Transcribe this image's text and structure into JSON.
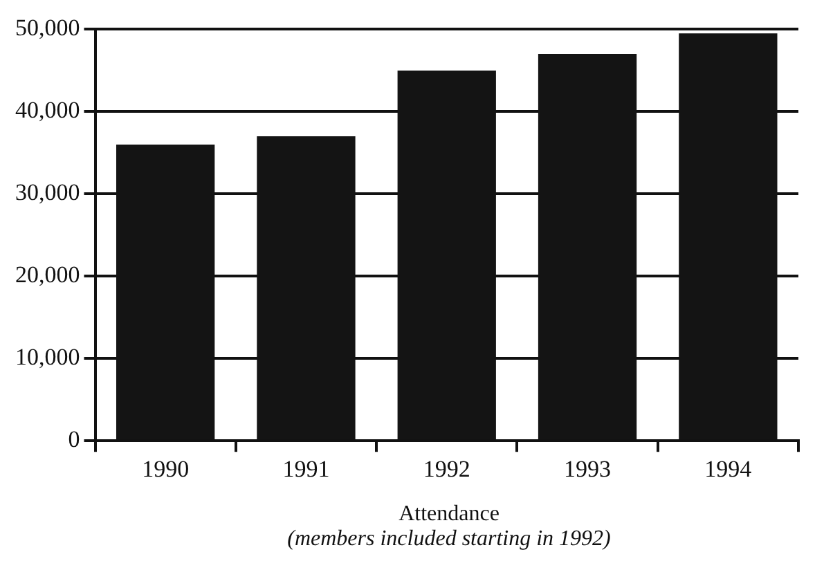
{
  "chart_data": {
    "type": "bar",
    "xlabel": "Attendance",
    "annotations": [
      "(members included starting in 1992)"
    ],
    "categories": [
      "1990",
      "1991",
      "1992",
      "1993",
      "1994"
    ],
    "values": [
      36000,
      37000,
      45000,
      47000,
      49500
    ],
    "color": "#141414",
    "ylim": [
      0,
      50000
    ],
    "yticks": [
      0,
      {
        "value": 10000,
        "label": "10,000"
      },
      {
        "value": 20000,
        "label": "20,000"
      },
      {
        "value": 30000,
        "label": "30,000"
      },
      {
        "value": 40000,
        "label": "40,000"
      },
      {
        "value": 50000,
        "label": "50,000"
      }
    ],
    "grid": "y",
    "legend": false
  }
}
